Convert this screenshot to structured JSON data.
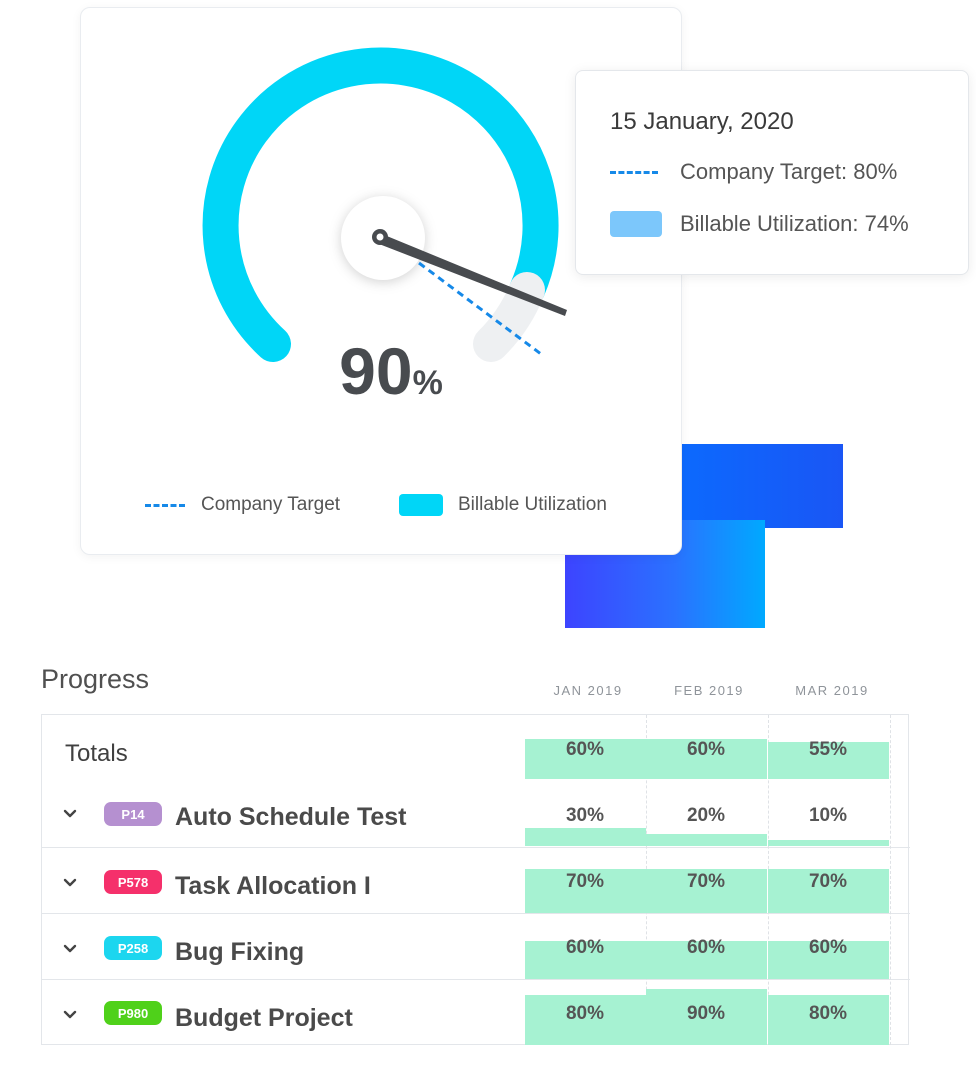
{
  "colors": {
    "gauge_arc": "#00d6f7",
    "target_line": "#1689e8",
    "tooltip_swatch": "#7cc7fb",
    "bar_fill": "#a6f2d2",
    "deco_blue": "#0a6cff"
  },
  "gauge": {
    "value_number": "90",
    "value_unit": "%",
    "legend": {
      "target_label": "Company Target",
      "utilization_label": "Billable Utilization"
    }
  },
  "tooltip": {
    "date": "15 January, 2020",
    "target_text": "Company Target: 80%",
    "utilization_text": "Billable Utilization: 74%"
  },
  "progress": {
    "title": "Progress",
    "months": [
      "JAN 2019",
      "FEB 2019",
      "MAR 2019"
    ],
    "totals": {
      "label": "Totals",
      "values": [
        "60%",
        "60%",
        "55%"
      ],
      "fill": [
        0.6,
        0.6,
        0.55
      ]
    },
    "projects": [
      {
        "code": "P14",
        "badge_color": "#b590d0",
        "name": "Auto Schedule Test",
        "values": [
          "30%",
          "20%",
          "10%"
        ],
        "fill": [
          0.3,
          0.2,
          0.1
        ]
      },
      {
        "code": "P578",
        "badge_color": "#f5306b",
        "name": "Task Allocation I",
        "values": [
          "70%",
          "70%",
          "70%"
        ],
        "fill": [
          0.7,
          0.7,
          0.7
        ]
      },
      {
        "code": "P258",
        "badge_color": "#1cd6ef",
        "name": "Bug Fixing",
        "values": [
          "60%",
          "60%",
          "60%"
        ],
        "fill": [
          0.6,
          0.6,
          0.6
        ]
      },
      {
        "code": "P980",
        "badge_color": "#4fd11a",
        "name": "Budget Project",
        "values": [
          "80%",
          "90%",
          "80%"
        ],
        "fill": [
          0.8,
          0.9,
          0.8
        ]
      }
    ]
  }
}
